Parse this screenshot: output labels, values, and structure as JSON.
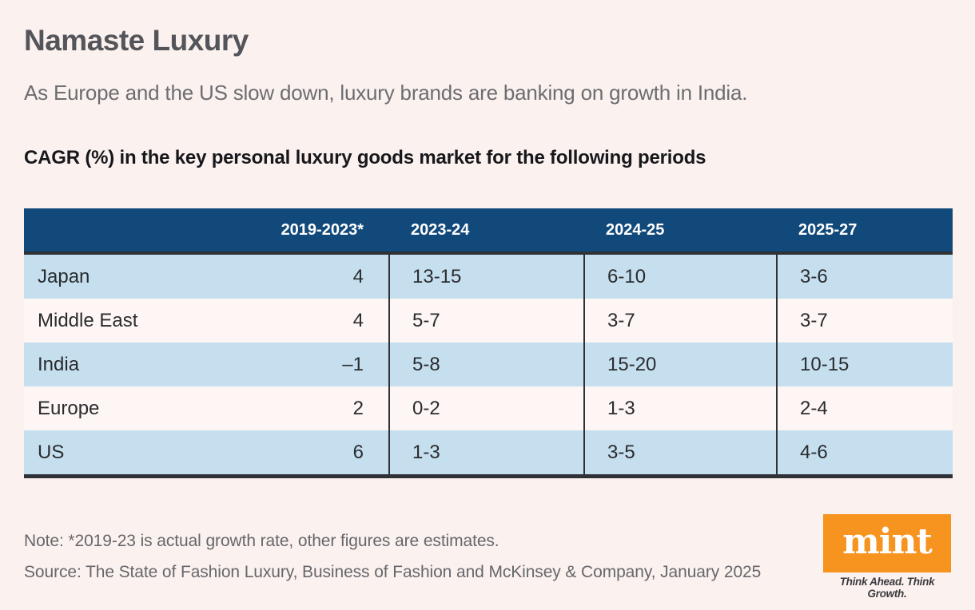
{
  "title": "Namaste Luxury",
  "subtitle": "As Europe and the US slow down, luxury brands are banking on growth in India.",
  "chart_heading": "CAGR (%) in the key personal luxury goods market for the following periods",
  "chart_data": {
    "type": "table",
    "title": "CAGR (%) in the key personal luxury goods market for the following periods",
    "columns": [
      "2019-2023*",
      "2023-24",
      "2024-25",
      "2025-27"
    ],
    "rows": [
      {
        "region": "Japan",
        "values": [
          "4",
          "13-15",
          "6-10",
          "3-6"
        ]
      },
      {
        "region": "Middle East",
        "values": [
          "4",
          "5-7",
          "3-7",
          "3-7"
        ]
      },
      {
        "region": "India",
        "values": [
          "–1",
          "5-8",
          "15-20",
          "10-15"
        ]
      },
      {
        "region": "Europe",
        "values": [
          "2",
          "0-2",
          "1-3",
          "2-4"
        ]
      },
      {
        "region": "US",
        "values": [
          "6",
          "1-3",
          "3-5",
          "4-6"
        ]
      }
    ],
    "layout": {
      "header_style": "dark-blue-band",
      "zebra_striping": true,
      "unit": "percent CAGR"
    }
  },
  "footer": {
    "note": "Note: *2019-23 is actual growth rate, other figures are estimates.",
    "source": "Source: The State of Fashion Luxury, Business of Fashion and McKinsey & Company, January 2025"
  },
  "branding": {
    "logo_text": "mint",
    "tagline": "Think Ahead. Think Growth."
  },
  "colors": {
    "background": "#fbf1ef",
    "header_blue": "#11497b",
    "row_blue": "#c5dfef",
    "row_light": "#fdf6f4",
    "rule_dark": "#2e3236",
    "mint_orange": "#f79420"
  }
}
